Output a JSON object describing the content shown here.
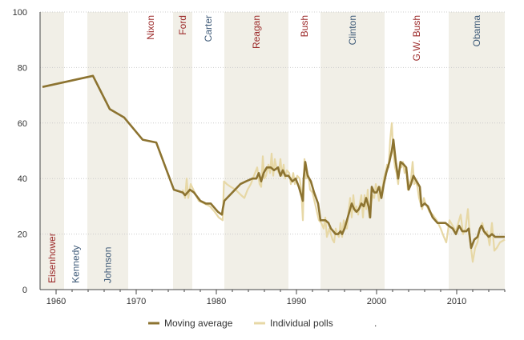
{
  "chart_data": {
    "type": "line",
    "title": "",
    "xlabel": "",
    "ylabel": "",
    "xlim": [
      1958,
      2016
    ],
    "ylim": [
      0,
      100
    ],
    "x_ticks": [
      1960,
      1970,
      1980,
      1990,
      2000,
      2010
    ],
    "y_ticks": [
      0,
      20,
      40,
      60,
      80,
      100
    ],
    "x_tick_labels": [
      "1960",
      "1970",
      "1980",
      "1990",
      "2000",
      "2010"
    ],
    "y_tick_labels": [
      "0",
      "20",
      "40",
      "60",
      "80",
      "100"
    ],
    "grid": "horizontal-dotted",
    "legend_position": "bottom",
    "presidencies": [
      {
        "name": "Eisenhower",
        "start": 1958,
        "end": 1961,
        "party": "R",
        "label_pos": "bottom"
      },
      {
        "name": "Kennedy",
        "start": 1961,
        "end": 1963.9,
        "party": "D",
        "label_pos": "bottom"
      },
      {
        "name": "Johnson",
        "start": 1963.9,
        "end": 1969,
        "party": "D",
        "label_pos": "bottom"
      },
      {
        "name": "Nixon",
        "start": 1969,
        "end": 1974.6,
        "party": "R",
        "label_pos": "top"
      },
      {
        "name": "Ford",
        "start": 1974.6,
        "end": 1977,
        "party": "R",
        "label_pos": "top"
      },
      {
        "name": "Carter",
        "start": 1977,
        "end": 1981,
        "party": "D",
        "label_pos": "top"
      },
      {
        "name": "Reagan",
        "start": 1981,
        "end": 1989,
        "party": "R",
        "label_pos": "top"
      },
      {
        "name": "Bush",
        "start": 1989,
        "end": 1993,
        "party": "R",
        "label_pos": "top"
      },
      {
        "name": "Clinton",
        "start": 1993,
        "end": 2001,
        "party": "D",
        "label_pos": "top"
      },
      {
        "name": "G.W. Bush",
        "start": 2001,
        "end": 2009,
        "party": "R",
        "label_pos": "top"
      },
      {
        "name": "Obama",
        "start": 2009,
        "end": 2016,
        "party": "D",
        "label_pos": "top"
      }
    ],
    "colors": {
      "band": "#f1efe7",
      "grid": "#cccccc",
      "republican": "#9c2a2a",
      "democrat": "#3e5a78",
      "moving_average": "#8c7330",
      "individual_polls": "#e7d8a6",
      "axis": "#444444"
    },
    "series": [
      {
        "name": "Moving average",
        "points": [
          [
            1958.3,
            73
          ],
          [
            1964.6,
            77
          ],
          [
            1966.7,
            65
          ],
          [
            1968.5,
            62
          ],
          [
            1970.8,
            54
          ],
          [
            1972.5,
            53
          ],
          [
            1974.7,
            36
          ],
          [
            1975.8,
            35
          ],
          [
            1976.1,
            34
          ],
          [
            1976.4,
            35
          ],
          [
            1976.7,
            36
          ],
          [
            1977.2,
            35
          ],
          [
            1978,
            32
          ],
          [
            1978.7,
            31
          ],
          [
            1979.3,
            31
          ],
          [
            1980.2,
            28
          ],
          [
            1980.7,
            27
          ],
          [
            1980.8,
            29
          ],
          [
            1981,
            32
          ],
          [
            1982,
            35
          ],
          [
            1983,
            38
          ],
          [
            1983.7,
            39
          ],
          [
            1984.5,
            40
          ],
          [
            1985,
            40
          ],
          [
            1985.3,
            42
          ],
          [
            1985.6,
            39
          ],
          [
            1985.9,
            42
          ],
          [
            1986.3,
            44
          ],
          [
            1986.8,
            44
          ],
          [
            1987.2,
            43
          ],
          [
            1987.7,
            44
          ],
          [
            1988,
            41
          ],
          [
            1988.3,
            43
          ],
          [
            1988.6,
            41
          ],
          [
            1989,
            41
          ],
          [
            1989.5,
            39
          ],
          [
            1989.9,
            40
          ],
          [
            1990.3,
            37
          ],
          [
            1990.6,
            34
          ],
          [
            1990.8,
            32
          ],
          [
            1990.9,
            40
          ],
          [
            1991.1,
            46
          ],
          [
            1991.4,
            41
          ],
          [
            1991.8,
            39
          ],
          [
            1992.2,
            35
          ],
          [
            1992.7,
            31
          ],
          [
            1993,
            25
          ],
          [
            1993.6,
            25
          ],
          [
            1994,
            24
          ],
          [
            1994.3,
            22
          ],
          [
            1994.6,
            21
          ],
          [
            1994.9,
            20
          ],
          [
            1995.2,
            20
          ],
          [
            1995.5,
            21
          ],
          [
            1995.7,
            20
          ],
          [
            1996,
            22
          ],
          [
            1996.3,
            25
          ],
          [
            1996.6,
            28
          ],
          [
            1996.9,
            31
          ],
          [
            1997.2,
            29
          ],
          [
            1997.5,
            28
          ],
          [
            1997.8,
            29
          ],
          [
            1998.1,
            31
          ],
          [
            1998.4,
            30
          ],
          [
            1998.7,
            33
          ],
          [
            1999,
            30
          ],
          [
            1999.2,
            26
          ],
          [
            1999.4,
            37
          ],
          [
            1999.7,
            35
          ],
          [
            2000,
            35
          ],
          [
            2000.3,
            37
          ],
          [
            2000.6,
            33
          ],
          [
            2000.9,
            38
          ],
          [
            2001.2,
            42
          ],
          [
            2001.6,
            46
          ],
          [
            2001.9,
            50
          ],
          [
            2002.1,
            54
          ],
          [
            2002.4,
            46
          ],
          [
            2002.7,
            40
          ],
          [
            2003,
            46
          ],
          [
            2003.4,
            45
          ],
          [
            2003.7,
            44
          ],
          [
            2004,
            36
          ],
          [
            2004.3,
            38
          ],
          [
            2004.6,
            41
          ],
          [
            2005,
            39
          ],
          [
            2005.4,
            37
          ],
          [
            2005.6,
            30
          ],
          [
            2006,
            31
          ],
          [
            2006.4,
            30
          ],
          [
            2007,
            26
          ],
          [
            2007.6,
            24
          ],
          [
            2008.6,
            24
          ],
          [
            2009,
            23
          ],
          [
            2009.5,
            22
          ],
          [
            2009.9,
            20
          ],
          [
            2010.3,
            23
          ],
          [
            2010.7,
            21
          ],
          [
            2011.2,
            21
          ],
          [
            2011.5,
            22
          ],
          [
            2011.8,
            15
          ],
          [
            2012.2,
            18
          ],
          [
            2012.6,
            19
          ],
          [
            2012.9,
            22
          ],
          [
            2013.1,
            23
          ],
          [
            2013.4,
            21
          ],
          [
            2013.7,
            20
          ],
          [
            2014,
            19
          ],
          [
            2014.4,
            20
          ],
          [
            2014.8,
            19
          ],
          [
            2015.6,
            19
          ],
          [
            2016,
            19
          ]
        ]
      },
      {
        "name": "Individual polls",
        "points": [
          [
            1975.8,
            36
          ],
          [
            1976.1,
            33
          ],
          [
            1976.3,
            40
          ],
          [
            1976.5,
            33
          ],
          [
            1976.8,
            38
          ],
          [
            1977.3,
            35
          ],
          [
            1977.8,
            32
          ],
          [
            1978.5,
            31
          ],
          [
            1979.2,
            30
          ],
          [
            1979.8,
            28
          ],
          [
            1980.3,
            26
          ],
          [
            1980.8,
            25
          ],
          [
            1980.95,
            39
          ],
          [
            1981.3,
            38
          ],
          [
            1981.8,
            37
          ],
          [
            1982.4,
            36
          ],
          [
            1983.1,
            34
          ],
          [
            1983.5,
            33
          ],
          [
            1983.9,
            36
          ],
          [
            1984.3,
            38
          ],
          [
            1984.7,
            41
          ],
          [
            1985.1,
            44
          ],
          [
            1985.4,
            38
          ],
          [
            1985.6,
            37
          ],
          [
            1985.8,
            48
          ],
          [
            1986.0,
            40
          ],
          [
            1986.2,
            41
          ],
          [
            1986.5,
            45
          ],
          [
            1986.7,
            42
          ],
          [
            1986.9,
            49
          ],
          [
            1987.1,
            41
          ],
          [
            1987.3,
            47
          ],
          [
            1987.5,
            44
          ],
          [
            1987.8,
            42
          ],
          [
            1988.0,
            47
          ],
          [
            1988.2,
            41
          ],
          [
            1988.4,
            45
          ],
          [
            1988.6,
            40
          ],
          [
            1988.8,
            43
          ],
          [
            1989.1,
            42
          ],
          [
            1989.3,
            38
          ],
          [
            1989.6,
            42
          ],
          [
            1989.8,
            38
          ],
          [
            1990.1,
            41
          ],
          [
            1990.4,
            40
          ],
          [
            1990.6,
            36
          ],
          [
            1990.8,
            25
          ],
          [
            1991.0,
            47
          ],
          [
            1991.2,
            40
          ],
          [
            1991.5,
            41
          ],
          [
            1991.7,
            36
          ],
          [
            1992.0,
            35
          ],
          [
            1992.4,
            30
          ],
          [
            1992.8,
            25
          ],
          [
            1993.1,
            24
          ],
          [
            1993.4,
            22
          ],
          [
            1993.6,
            26
          ],
          [
            1993.8,
            19
          ],
          [
            1994.1,
            22
          ],
          [
            1994.3,
            20
          ],
          [
            1994.5,
            18
          ],
          [
            1994.7,
            17
          ],
          [
            1994.9,
            22
          ],
          [
            1995.1,
            20
          ],
          [
            1995.3,
            19
          ],
          [
            1995.5,
            24
          ],
          [
            1995.7,
            19
          ],
          [
            1995.9,
            25
          ],
          [
            1996.1,
            23
          ],
          [
            1996.3,
            22
          ],
          [
            1996.5,
            28
          ],
          [
            1996.7,
            33
          ],
          [
            1996.9,
            26
          ],
          [
            1997.1,
            34
          ],
          [
            1997.3,
            28
          ],
          [
            1997.5,
            30
          ],
          [
            1997.7,
            27
          ],
          [
            1997.9,
            31
          ],
          [
            1998.1,
            34
          ],
          [
            1998.3,
            26
          ],
          [
            1998.5,
            34
          ],
          [
            1998.7,
            29
          ],
          [
            1998.9,
            36
          ],
          [
            1999.1,
            26
          ],
          [
            1999.3,
            31
          ],
          [
            1999.5,
            34
          ],
          [
            1999.7,
            33
          ],
          [
            1999.9,
            38
          ],
          [
            2000.1,
            36
          ],
          [
            2000.3,
            32
          ],
          [
            2000.5,
            37
          ],
          [
            2000.7,
            35
          ],
          [
            2000.9,
            40
          ],
          [
            2001.1,
            42
          ],
          [
            2001.3,
            45
          ],
          [
            2001.5,
            44
          ],
          [
            2001.7,
            54
          ],
          [
            2001.9,
            60
          ],
          [
            2002.1,
            49
          ],
          [
            2002.3,
            44
          ],
          [
            2002.5,
            42
          ],
          [
            2002.7,
            38
          ],
          [
            2002.9,
            46
          ],
          [
            2003.1,
            44
          ],
          [
            2003.3,
            46
          ],
          [
            2003.5,
            42
          ],
          [
            2003.7,
            44
          ],
          [
            2003.9,
            36
          ],
          [
            2004.1,
            38
          ],
          [
            2004.3,
            40
          ],
          [
            2004.5,
            46
          ],
          [
            2004.7,
            38
          ],
          [
            2004.9,
            39
          ],
          [
            2005.1,
            37
          ],
          [
            2005.3,
            33
          ],
          [
            2005.5,
            31
          ],
          [
            2005.7,
            29
          ],
          [
            2005.9,
            33
          ],
          [
            2006.1,
            31
          ],
          [
            2006.3,
            30
          ],
          [
            2006.6,
            28
          ],
          [
            2007.0,
            27
          ],
          [
            2007.5,
            25
          ],
          [
            2008.0,
            22
          ],
          [
            2008.4,
            19
          ],
          [
            2008.7,
            17
          ],
          [
            2009.1,
            25
          ],
          [
            2009.5,
            23
          ],
          [
            2009.9,
            21
          ],
          [
            2010.2,
            24
          ],
          [
            2010.5,
            27
          ],
          [
            2010.8,
            20
          ],
          [
            2011.1,
            22
          ],
          [
            2011.4,
            29
          ],
          [
            2011.7,
            17
          ],
          [
            2012.0,
            10
          ],
          [
            2012.3,
            15
          ],
          [
            2012.6,
            17
          ],
          [
            2012.9,
            22
          ],
          [
            2013.2,
            24
          ],
          [
            2013.5,
            20
          ],
          [
            2013.8,
            21
          ],
          [
            2014.1,
            16
          ],
          [
            2014.4,
            24
          ],
          [
            2014.7,
            14
          ],
          [
            2015.0,
            15
          ],
          [
            2015.4,
            17
          ],
          [
            2016,
            18
          ]
        ]
      }
    ],
    "legend": [
      {
        "label": "Moving average",
        "series": "Moving average"
      },
      {
        "label": "Individual polls",
        "series": "Individual polls"
      },
      {
        "label": ".",
        "series": ""
      }
    ]
  }
}
